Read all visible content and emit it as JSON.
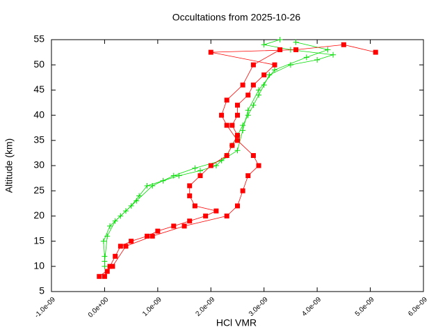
{
  "chart_data": {
    "type": "line",
    "title": "Occultations from 2025-10-26",
    "x_label": "HCl VMR",
    "y_label": "Altitude (km)",
    "xlim": [
      -1e-09,
      6e-09
    ],
    "ylim": [
      5,
      55
    ],
    "xticks": [
      {
        "value": -1e-09,
        "label": "-1.0e-09"
      },
      {
        "value": 0,
        "label": "0.0e+00"
      },
      {
        "value": 1e-09,
        "label": "1.0e-09"
      },
      {
        "value": 2e-09,
        "label": "2.0e-09"
      },
      {
        "value": 3e-09,
        "label": "3.0e-09"
      },
      {
        "value": 4e-09,
        "label": "4.0e-09"
      },
      {
        "value": 5e-09,
        "label": "5.0e-09"
      },
      {
        "value": 6e-09,
        "label": "6.0e-09"
      }
    ],
    "yticks": [
      5,
      10,
      15,
      20,
      25,
      30,
      35,
      40,
      45,
      50,
      55
    ],
    "series": [
      {
        "color": "#00dd00",
        "marker": "plus",
        "x": [
          0,
          0,
          -2e-11,
          1e-10,
          3e-10,
          5e-10,
          6.5e-10,
          8e-10,
          1.1e-09,
          1.4e-09,
          1.8e-09,
          2.1e-09,
          2.3e-09,
          2.4e-09,
          2.5e-09,
          2.6e-09,
          2.7e-09,
          2.8e-09,
          2.9e-09,
          3e-09,
          3.1e-09,
          3.5e-09,
          4e-09,
          4.3e-09,
          3.5e-09,
          3e-09,
          3.3e-09
        ],
        "values": [
          10,
          12,
          15,
          18,
          20,
          22,
          24,
          26,
          27,
          28,
          29,
          30,
          32,
          34,
          36,
          38,
          40,
          42,
          44,
          46,
          48,
          50,
          51,
          52,
          53,
          54,
          55
        ]
      },
      {
        "color": "#00dd00",
        "marker": "plus",
        "x": [
          0,
          5e-11,
          2e-10,
          4e-10,
          6e-10,
          9e-10,
          1.3e-09,
          1.7e-09,
          2.2e-09,
          2.5e-09,
          2.6e-09,
          2.7e-09,
          2.9e-09,
          3.2e-09,
          3.8e-09,
          4.2e-09,
          3.6e-09
        ],
        "values": [
          11,
          16,
          19,
          21,
          23,
          26,
          28,
          29.5,
          31,
          33,
          37,
          41,
          45,
          49,
          51.5,
          53,
          54.5
        ]
      },
      {
        "color": "#ff0000",
        "marker": "square",
        "x": [
          0,
          5e-11,
          1e-10,
          2e-10,
          3e-10,
          5e-10,
          8e-10,
          1e-09,
          1.3e-09,
          1.6e-09,
          1.9e-09,
          2.1e-09,
          1.7e-09,
          1.6e-09,
          1.6e-09,
          1.8e-09,
          2e-09,
          2.3e-09,
          2.4e-09,
          2.5e-09,
          2.4e-09,
          2.5e-09,
          2.5e-09,
          2.7e-09,
          2.8e-09,
          3e-09,
          3.2e-09,
          2e-09,
          3.6e-09,
          4.5e-09,
          5.1e-09
        ],
        "values": [
          8,
          9,
          10,
          12,
          14,
          15,
          16,
          17,
          18,
          19,
          20,
          21,
          22,
          24,
          26,
          28,
          30,
          32,
          34,
          36,
          38,
          40,
          42,
          44,
          46,
          48,
          50,
          52.5,
          53,
          54,
          52.5
        ]
      },
      {
        "color": "#ff0000",
        "marker": "square",
        "x": [
          -1e-10,
          1.5e-10,
          4e-10,
          9e-10,
          1.5e-09,
          2.3e-09,
          2.5e-09,
          2.6e-09,
          2.7e-09,
          2.9e-09,
          2.8e-09,
          2.5e-09,
          2.3e-09,
          2.2e-09,
          2.3e-09,
          2.6e-09,
          2.8e-09,
          3.3e-09
        ],
        "values": [
          8,
          10,
          14,
          16,
          18,
          20,
          22,
          25,
          28,
          30,
          32,
          35,
          38,
          40,
          43,
          46,
          50,
          53
        ]
      }
    ]
  }
}
